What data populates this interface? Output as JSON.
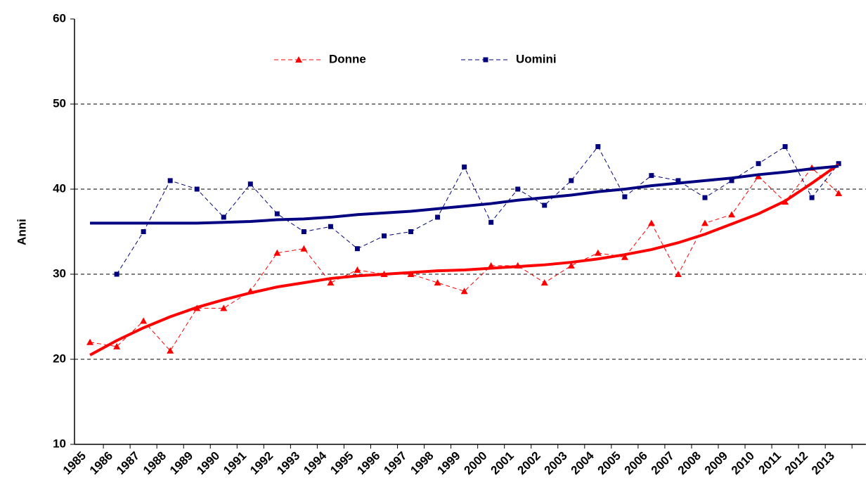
{
  "chart_data": {
    "type": "line",
    "y_label": "Anni",
    "categories": [
      "1985",
      "1986",
      "1987",
      "1988",
      "1989",
      "1990",
      "1991",
      "1992",
      "1993",
      "1994",
      "1995",
      "1996",
      "1997",
      "1998",
      "1999",
      "2000",
      "2001",
      "2002",
      "2003",
      "2004",
      "2005",
      "2006",
      "2007",
      "2008",
      "2009",
      "2010",
      "2011",
      "2012",
      "2013"
    ],
    "series": [
      {
        "name": "Donne",
        "color": "#ff0000",
        "marker": "triangle",
        "values": [
          22,
          21.5,
          24.5,
          21,
          26,
          26,
          28,
          32.5,
          33,
          29,
          30.5,
          30,
          30,
          29,
          28,
          31,
          31,
          29,
          31,
          32.5,
          32,
          36,
          30,
          36,
          37,
          41.5,
          38.5,
          42.5,
          39.5
        ],
        "trend": [
          20.5,
          22.2,
          23.7,
          25,
          26.1,
          27,
          27.8,
          28.5,
          29,
          29.5,
          29.8,
          30,
          30.2,
          30.4,
          30.5,
          30.7,
          30.9,
          31.1,
          31.4,
          31.8,
          32.3,
          32.9,
          33.7,
          34.7,
          35.9,
          37.1,
          38.6,
          40.7,
          42.9
        ]
      },
      {
        "name": "Uomini",
        "color": "#000080",
        "marker": "square",
        "values": [
          null,
          30,
          35,
          41,
          40,
          36.7,
          40.6,
          37.1,
          35,
          35.6,
          33,
          34.5,
          35,
          36.7,
          42.6,
          36.1,
          40,
          38.1,
          41,
          45,
          39.1,
          41.6,
          41,
          39,
          41,
          43,
          45,
          39,
          43
        ],
        "trend": [
          36,
          36,
          36,
          36,
          36,
          36.1,
          36.2,
          36.4,
          36.5,
          36.7,
          37,
          37.2,
          37.4,
          37.7,
          38,
          38.3,
          38.7,
          39,
          39.3,
          39.7,
          40,
          40.4,
          40.7,
          41,
          41.3,
          41.7,
          42,
          42.4,
          42.7
        ]
      }
    ],
    "ylim": [
      10,
      60
    ],
    "yticks": [
      10,
      20,
      30,
      40,
      50,
      60
    ],
    "grid": true,
    "legend": "top"
  }
}
